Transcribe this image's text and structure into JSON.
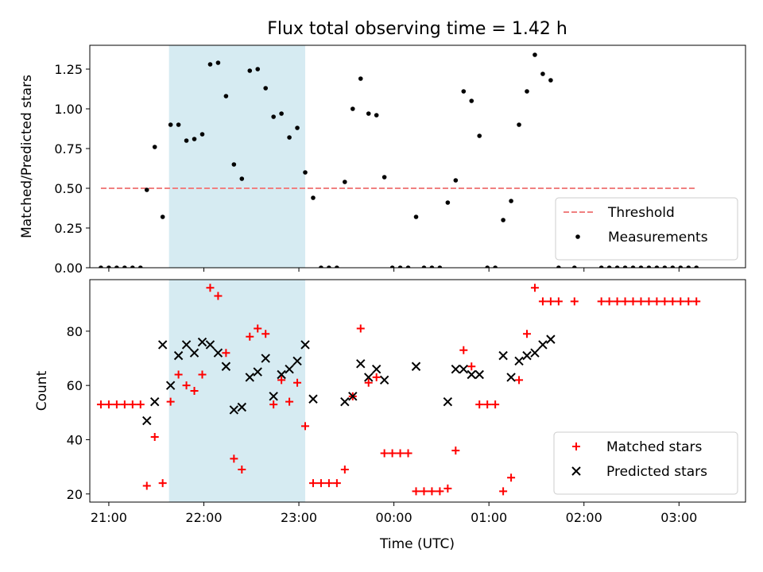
{
  "figure": {
    "title": "Flux total observing time = 1.42 h",
    "xlabel": "Time (UTC)"
  },
  "chart_data": [
    {
      "type": "scatter",
      "panel": "top",
      "ylabel": "Matched/Predicted stars",
      "xlim": [
        "20:48",
        "03:42"
      ],
      "ylim": [
        0,
        1.4
      ],
      "yticks": [
        0.0,
        0.25,
        0.5,
        0.75,
        1.0,
        1.25
      ],
      "ytick_labels": [
        "0.00",
        "0.25",
        "0.50",
        "0.75",
        "1.00",
        "1.25"
      ],
      "shaded_span": [
        "21:38",
        "23:04"
      ],
      "threshold": {
        "name": "Threshold",
        "value": 0.5,
        "x_range": [
          "20:55",
          "03:10"
        ],
        "color": "#f08080"
      },
      "legend_position": "lower right",
      "series": [
        {
          "name": "Measurements",
          "color": "#000000",
          "points": [
            [
              "20:55",
              0
            ],
            [
              "21:00",
              0
            ],
            [
              "21:05",
              0
            ],
            [
              "21:10",
              0
            ],
            [
              "21:15",
              0
            ],
            [
              "21:20",
              0
            ],
            [
              "21:24",
              0.49
            ],
            [
              "21:29",
              0.76
            ],
            [
              "21:34",
              0.32
            ],
            [
              "21:39",
              0.9
            ],
            [
              "21:44",
              0.9
            ],
            [
              "21:49",
              0.8
            ],
            [
              "21:54",
              0.81
            ],
            [
              "21:59",
              0.84
            ],
            [
              "22:04",
              1.28
            ],
            [
              "22:09",
              1.29
            ],
            [
              "22:14",
              1.08
            ],
            [
              "22:19",
              0.65
            ],
            [
              "22:24",
              0.56
            ],
            [
              "22:29",
              1.24
            ],
            [
              "22:34",
              1.25
            ],
            [
              "22:39",
              1.13
            ],
            [
              "22:44",
              0.95
            ],
            [
              "22:49",
              0.97
            ],
            [
              "22:54",
              0.82
            ],
            [
              "22:59",
              0.88
            ],
            [
              "23:04",
              0.6
            ],
            [
              "23:09",
              0.44
            ],
            [
              "23:14",
              0
            ],
            [
              "23:19",
              0
            ],
            [
              "23:24",
              0
            ],
            [
              "23:29",
              0.54
            ],
            [
              "23:34",
              1.0
            ],
            [
              "23:39",
              1.19
            ],
            [
              "23:44",
              0.97
            ],
            [
              "23:49",
              0.96
            ],
            [
              "23:54",
              0.57
            ],
            [
              "23:59",
              0
            ],
            [
              "00:04",
              0
            ],
            [
              "00:09",
              0
            ],
            [
              "00:14",
              0.32
            ],
            [
              "00:19",
              0
            ],
            [
              "00:24",
              0
            ],
            [
              "00:29",
              0
            ],
            [
              "00:34",
              0.41
            ],
            [
              "00:39",
              0.55
            ],
            [
              "00:44",
              1.11
            ],
            [
              "00:49",
              1.05
            ],
            [
              "00:54",
              0.83
            ],
            [
              "00:59",
              0
            ],
            [
              "01:04",
              0
            ],
            [
              "01:09",
              0.3
            ],
            [
              "01:14",
              0.42
            ],
            [
              "01:19",
              0.9
            ],
            [
              "01:24",
              1.11
            ],
            [
              "01:29",
              1.34
            ],
            [
              "01:34",
              1.22
            ],
            [
              "01:39",
              1.18
            ],
            [
              "01:44",
              0
            ],
            [
              "01:54",
              0
            ],
            [
              "02:11",
              0
            ],
            [
              "02:16",
              0
            ],
            [
              "02:21",
              0
            ],
            [
              "02:26",
              0
            ],
            [
              "02:31",
              0
            ],
            [
              "02:36",
              0
            ],
            [
              "02:41",
              0
            ],
            [
              "02:46",
              0
            ],
            [
              "02:51",
              0
            ],
            [
              "02:56",
              0
            ],
            [
              "03:01",
              0
            ],
            [
              "03:06",
              0
            ],
            [
              "03:11",
              0
            ]
          ]
        }
      ]
    },
    {
      "type": "scatter",
      "panel": "bottom",
      "ylabel": "Count",
      "xlabel": "Time (UTC)",
      "xlim": [
        "20:48",
        "03:42"
      ],
      "ylim": [
        17,
        99
      ],
      "yticks": [
        20,
        40,
        60,
        80
      ],
      "ytick_labels": [
        "20",
        "40",
        "60",
        "80"
      ],
      "xticks": [
        "21:00",
        "22:00",
        "23:00",
        "00:00",
        "01:00",
        "02:00",
        "03:00"
      ],
      "xtick_labels": [
        "21:00",
        "22:00",
        "23:00",
        "00:00",
        "01:00",
        "02:00",
        "03:00"
      ],
      "shaded_span": [
        "21:38",
        "23:04"
      ],
      "legend_position": "lower right",
      "series": [
        {
          "name": "Matched stars",
          "color": "#ff0000",
          "marker": "plus",
          "points": [
            [
              "20:55",
              53
            ],
            [
              "21:00",
              53
            ],
            [
              "21:05",
              53
            ],
            [
              "21:10",
              53
            ],
            [
              "21:15",
              53
            ],
            [
              "21:20",
              53
            ],
            [
              "21:24",
              23
            ],
            [
              "21:29",
              41
            ],
            [
              "21:34",
              24
            ],
            [
              "21:39",
              54
            ],
            [
              "21:44",
              64
            ],
            [
              "21:49",
              60
            ],
            [
              "21:54",
              58
            ],
            [
              "21:59",
              64
            ],
            [
              "22:04",
              96
            ],
            [
              "22:09",
              93
            ],
            [
              "22:14",
              72
            ],
            [
              "22:19",
              33
            ],
            [
              "22:24",
              29
            ],
            [
              "22:29",
              78
            ],
            [
              "22:34",
              81
            ],
            [
              "22:39",
              79
            ],
            [
              "22:44",
              53
            ],
            [
              "22:49",
              62
            ],
            [
              "22:54",
              54
            ],
            [
              "22:59",
              61
            ],
            [
              "23:04",
              45
            ],
            [
              "23:09",
              24
            ],
            [
              "23:14",
              24
            ],
            [
              "23:19",
              24
            ],
            [
              "23:24",
              24
            ],
            [
              "23:29",
              29
            ],
            [
              "23:34",
              56
            ],
            [
              "23:39",
              81
            ],
            [
              "23:44",
              61
            ],
            [
              "23:49",
              63
            ],
            [
              "23:54",
              35
            ],
            [
              "23:59",
              35
            ],
            [
              "00:04",
              35
            ],
            [
              "00:09",
              35
            ],
            [
              "00:14",
              21
            ],
            [
              "00:19",
              21
            ],
            [
              "00:24",
              21
            ],
            [
              "00:29",
              21
            ],
            [
              "00:34",
              22
            ],
            [
              "00:39",
              36
            ],
            [
              "00:44",
              73
            ],
            [
              "00:49",
              67
            ],
            [
              "00:54",
              53
            ],
            [
              "00:59",
              53
            ],
            [
              "01:04",
              53
            ],
            [
              "01:09",
              21
            ],
            [
              "01:14",
              26
            ],
            [
              "01:19",
              62
            ],
            [
              "01:24",
              79
            ],
            [
              "01:29",
              96
            ],
            [
              "01:34",
              91
            ],
            [
              "01:39",
              91
            ],
            [
              "01:44",
              91
            ],
            [
              "01:54",
              91
            ],
            [
              "02:11",
              91
            ],
            [
              "02:16",
              91
            ],
            [
              "02:21",
              91
            ],
            [
              "02:26",
              91
            ],
            [
              "02:31",
              91
            ],
            [
              "02:36",
              91
            ],
            [
              "02:41",
              91
            ],
            [
              "02:46",
              91
            ],
            [
              "02:51",
              91
            ],
            [
              "02:56",
              91
            ],
            [
              "03:01",
              91
            ],
            [
              "03:06",
              91
            ],
            [
              "03:11",
              91
            ]
          ]
        },
        {
          "name": "Predicted stars",
          "color": "#000000",
          "marker": "x",
          "points": [
            [
              "21:24",
              47
            ],
            [
              "21:29",
              54
            ],
            [
              "21:34",
              75
            ],
            [
              "21:39",
              60
            ],
            [
              "21:44",
              71
            ],
            [
              "21:49",
              75
            ],
            [
              "21:54",
              72
            ],
            [
              "21:59",
              76
            ],
            [
              "22:04",
              75
            ],
            [
              "22:09",
              72
            ],
            [
              "22:14",
              67
            ],
            [
              "22:19",
              51
            ],
            [
              "22:24",
              52
            ],
            [
              "22:29",
              63
            ],
            [
              "22:34",
              65
            ],
            [
              "22:39",
              70
            ],
            [
              "22:44",
              56
            ],
            [
              "22:49",
              64
            ],
            [
              "22:54",
              66
            ],
            [
              "22:59",
              69
            ],
            [
              "23:04",
              75
            ],
            [
              "23:09",
              55
            ],
            [
              "23:29",
              54
            ],
            [
              "23:34",
              56
            ],
            [
              "23:39",
              68
            ],
            [
              "23:44",
              63
            ],
            [
              "23:49",
              66
            ],
            [
              "23:54",
              62
            ],
            [
              "00:14",
              67
            ],
            [
              "00:34",
              54
            ],
            [
              "00:39",
              66
            ],
            [
              "00:44",
              66
            ],
            [
              "00:49",
              64
            ],
            [
              "00:54",
              64
            ],
            [
              "01:09",
              71
            ],
            [
              "01:14",
              63
            ],
            [
              "01:19",
              69
            ],
            [
              "01:24",
              71
            ],
            [
              "01:29",
              72
            ],
            [
              "01:34",
              75
            ],
            [
              "01:39",
              77
            ]
          ]
        }
      ]
    }
  ]
}
